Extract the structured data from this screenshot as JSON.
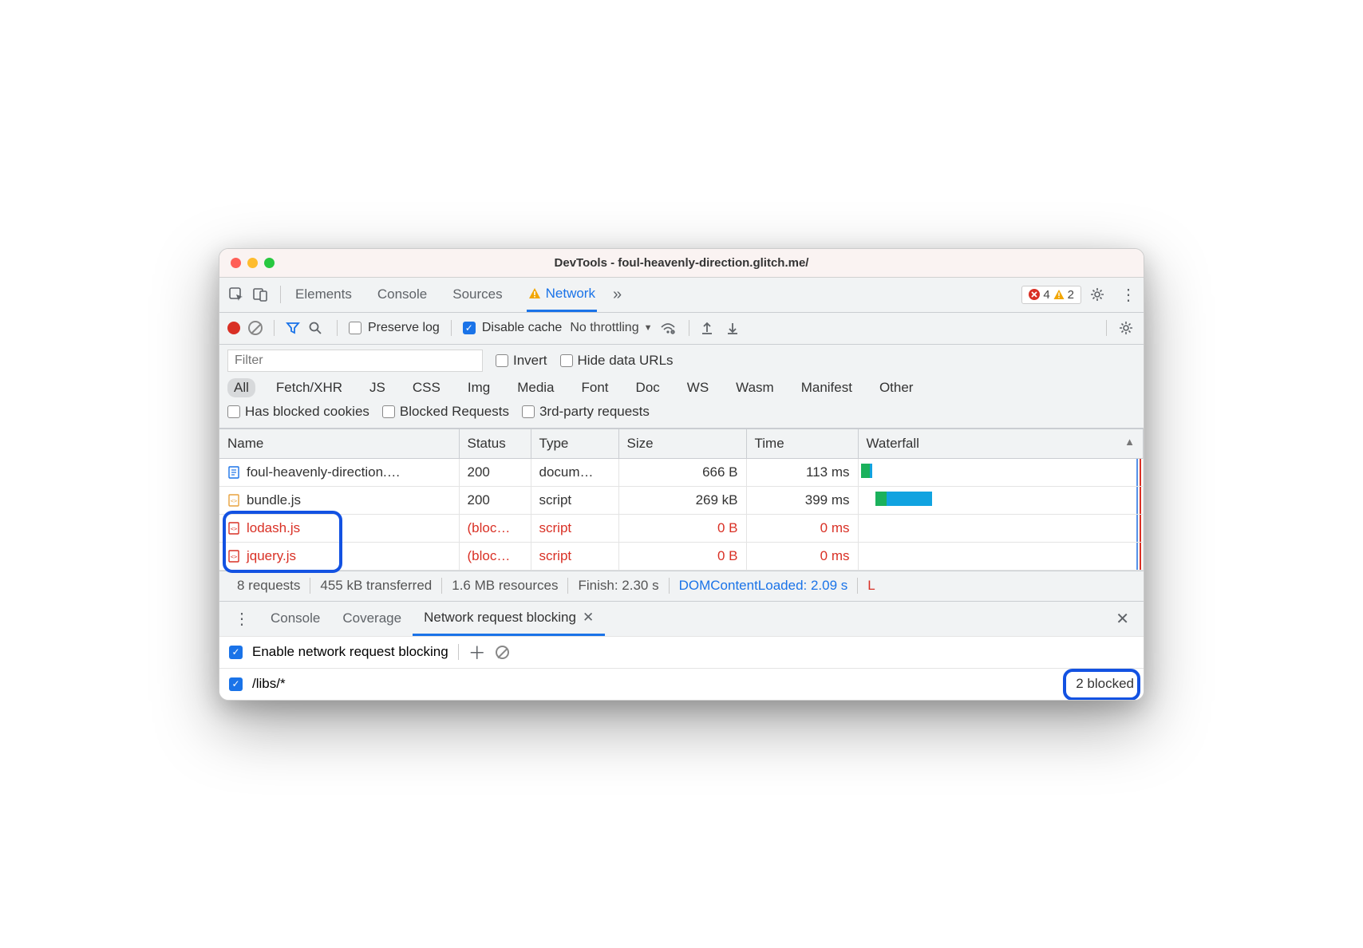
{
  "window": {
    "title": "DevTools - foul-heavenly-direction.glitch.me/"
  },
  "tabs": {
    "items": [
      "Elements",
      "Console",
      "Sources",
      "Network"
    ],
    "active": "Network",
    "overflow_glyph": "»",
    "error_count": "4",
    "warn_count": "2"
  },
  "toolbar": {
    "preserve_log": "Preserve log",
    "disable_cache": "Disable cache",
    "disable_cache_checked": true,
    "throttling": "No throttling"
  },
  "filter": {
    "placeholder": "Filter",
    "invert": "Invert",
    "hide_data_urls": "Hide data URLs",
    "types": [
      "All",
      "Fetch/XHR",
      "JS",
      "CSS",
      "Img",
      "Media",
      "Font",
      "Doc",
      "WS",
      "Wasm",
      "Manifest",
      "Other"
    ],
    "active_type": "All",
    "has_blocked": "Has blocked cookies",
    "blocked_req": "Blocked Requests",
    "third_party": "3rd-party requests"
  },
  "columns": [
    "Name",
    "Status",
    "Type",
    "Size",
    "Time",
    "Waterfall"
  ],
  "rows": [
    {
      "name": "foul-heavenly-direction.…",
      "status": "200",
      "type": "docum…",
      "size": "666 B",
      "time": "113 ms",
      "blocked": false,
      "icon": "doc",
      "wf": {
        "left_pct": 1,
        "wait_pct": 3,
        "dl_pct": 1
      }
    },
    {
      "name": "bundle.js",
      "status": "200",
      "type": "script",
      "size": "269 kB",
      "time": "399 ms",
      "blocked": false,
      "icon": "js-y",
      "wf": {
        "left_pct": 6,
        "wait_pct": 4,
        "dl_pct": 16
      }
    },
    {
      "name": "lodash.js",
      "status": "(bloc…",
      "type": "script",
      "size": "0 B",
      "time": "0 ms",
      "blocked": true,
      "icon": "js-r",
      "wf": null
    },
    {
      "name": "jquery.js",
      "status": "(bloc…",
      "type": "script",
      "size": "0 B",
      "time": "0 ms",
      "blocked": true,
      "icon": "js-r",
      "wf": null
    }
  ],
  "summary": {
    "requests": "8 requests",
    "transferred": "455 kB transferred",
    "resources": "1.6 MB resources",
    "finish": "Finish: 2.30 s",
    "dcl": "DOMContentLoaded: 2.09 s",
    "load": "L"
  },
  "drawer": {
    "tabs": [
      "Console",
      "Coverage",
      "Network request blocking"
    ],
    "active": "Network request blocking",
    "enable_label": "Enable network request blocking",
    "pattern": "/libs/*",
    "blocked_count": "2 blocked"
  },
  "colors": {
    "accent": "#1a73e8",
    "error": "#d93025",
    "warn": "#f29900",
    "wf_wait": "#1bb15c",
    "wf_dl": "#11a3e0",
    "highlight": "#1352e2"
  }
}
